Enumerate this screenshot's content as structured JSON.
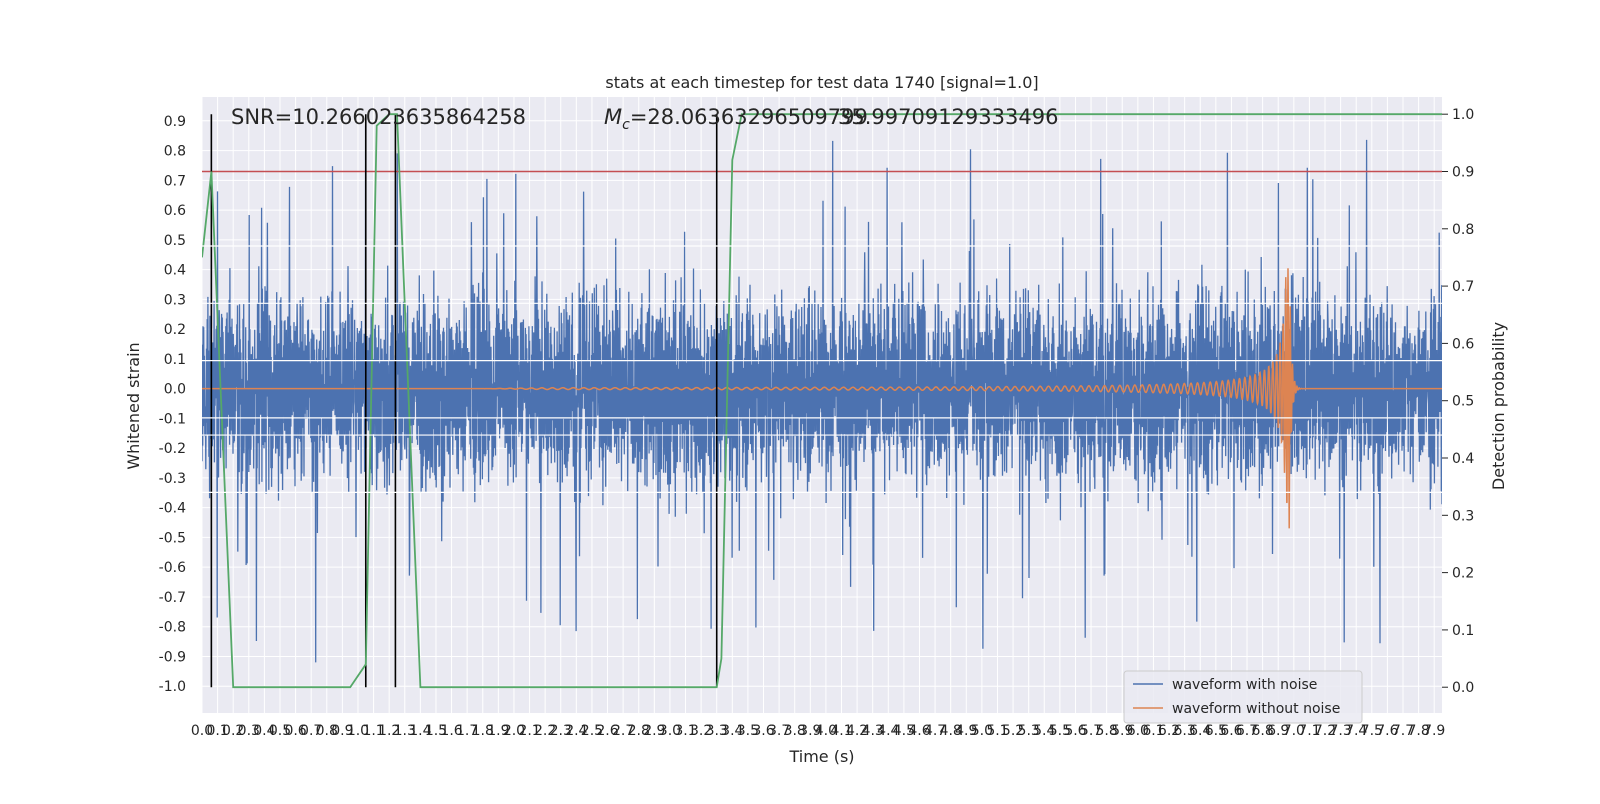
{
  "chart_data": {
    "type": "line",
    "title": "stats at each timestep for test data 1740 [signal=1.0]",
    "xlabel": "Time (s)",
    "ylabel": "Whitened strain",
    "y2label": "Detection probability",
    "xlim": [
      0.0,
      7.95
    ],
    "ylim": [
      -1.09,
      0.98
    ],
    "y2lim": [
      -0.045,
      1.03
    ],
    "grid": true,
    "legend_position": "lower right",
    "x_ticks": [
      "0.0",
      "0.1",
      "0.2",
      "0.3",
      "0.4",
      "0.5",
      "0.6",
      "0.7",
      "0.8",
      "0.9",
      "1.0",
      "1.1",
      "1.2",
      "1.3",
      "1.4",
      "1.5",
      "1.6",
      "1.7",
      "1.8",
      "1.9",
      "2.0",
      "2.1",
      "2.2",
      "2.3",
      "2.4",
      "2.5",
      "2.6",
      "2.7",
      "2.8",
      "2.9",
      "3.0",
      "3.1",
      "3.2",
      "3.3",
      "3.4",
      "3.5",
      "3.6",
      "3.7",
      "3.8",
      "3.9",
      "4.0",
      "4.1",
      "4.2",
      "4.3",
      "4.4",
      "4.5",
      "4.6",
      "4.7",
      "4.8",
      "4.9",
      "5.0",
      "5.1",
      "5.2",
      "5.3",
      "5.4",
      "5.5",
      "5.6",
      "5.7",
      "5.8",
      "5.9",
      "6.0",
      "6.1",
      "6.2",
      "6.3",
      "6.4",
      "6.5",
      "6.6",
      "6.7",
      "6.8",
      "6.9",
      "7.0",
      "7.1",
      "7.2",
      "7.3",
      "7.4",
      "7.5",
      "7.6",
      "7.7",
      "7.8",
      "7.9"
    ],
    "y_ticks": [
      "0.9",
      "0.8",
      "0.7",
      "0.6",
      "0.5",
      "0.4",
      "0.3",
      "0.2",
      "0.1",
      "0.0",
      "-0.1",
      "-0.2",
      "-0.3",
      "-0.4",
      "-0.5",
      "-0.6",
      "-0.7",
      "-0.8",
      "-0.9",
      "-1.0"
    ],
    "y2_ticks": [
      "1.0",
      "0.9",
      "0.8",
      "0.7",
      "0.6",
      "0.5",
      "0.4",
      "0.3",
      "0.2",
      "0.1",
      "0.0"
    ],
    "series": [
      {
        "name": "waveform with noise",
        "color": "#4c72b0",
        "axis": "left",
        "description_values": "dense noisy strain, typical amplitude about ±0.35, peaks to about ±0.9"
      },
      {
        "name": "waveform without noise",
        "color": "#dd8452",
        "axis": "left",
        "description_values": "chirp signal, amplitude growing from about 0.005 at t=2.2 s to about 0.54 at merger t≈6.97 s, then ringdown"
      },
      {
        "name": "",
        "color": "#55a868",
        "axis": "right",
        "x": [
          0.0,
          0.06,
          0.2,
          0.95,
          1.05,
          1.12,
          1.2,
          1.25,
          1.4,
          3.25,
          3.3,
          3.33,
          3.4,
          3.46,
          3.5,
          7.95
        ],
        "values": [
          0.75,
          0.9,
          0.0,
          0.0,
          0.04,
          0.98,
          1.0,
          1.0,
          0.0,
          0.0,
          0.0,
          0.05,
          0.92,
          1.0,
          1.0,
          1.0
        ]
      }
    ],
    "threshold_line": {
      "value": 0.9,
      "axis": "right",
      "color": "#c44e52"
    },
    "vertical_lines": [
      0.06,
      1.05,
      1.24,
      3.3
    ],
    "annotations": [
      {
        "text": "SNR=10.266023635864258"
      },
      {
        "text_prefix": "M",
        "text_subscript": "c",
        "text_suffix": "=28.06363296509799"
      },
      {
        "text": "35.99709129333496"
      }
    ],
    "legend": [
      "waveform with noise",
      "waveform without noise"
    ]
  }
}
